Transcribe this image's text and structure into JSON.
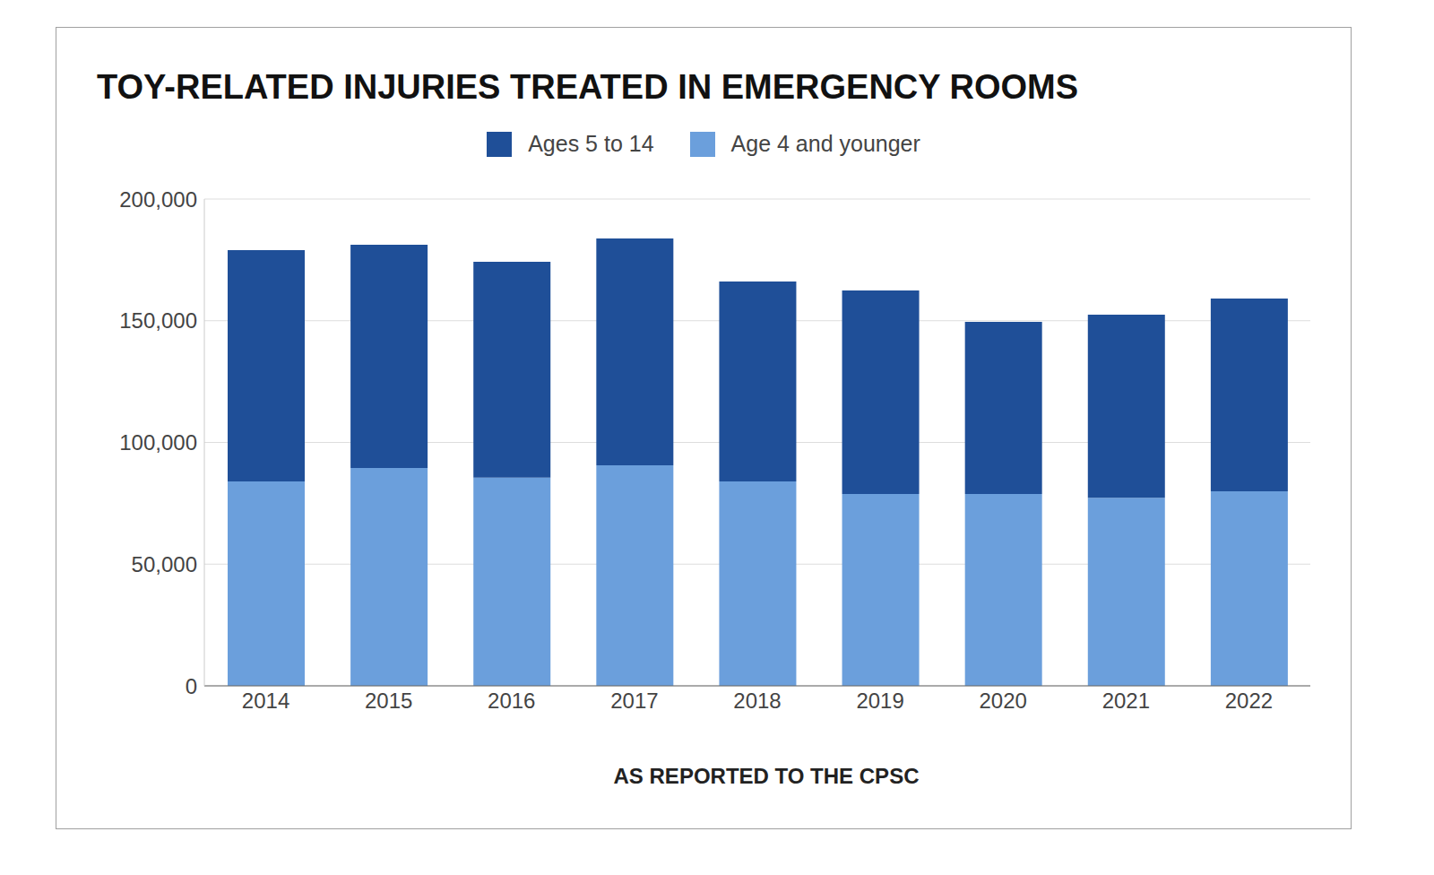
{
  "chart_data": {
    "type": "bar",
    "title": "TOY-RELATED INJURIES TREATED IN EMERGENCY ROOMS",
    "x_label": "AS REPORTED TO THE CPSC",
    "categories": [
      "2014",
      "2015",
      "2016",
      "2017",
      "2018",
      "2019",
      "2020",
      "2021",
      "2022"
    ],
    "series": [
      {
        "name": "Ages 5 to 14",
        "color": "#1f4f98",
        "values": [
          95000,
          91700,
          88700,
          93200,
          82100,
          83600,
          70700,
          75200,
          79200
        ]
      },
      {
        "name": "Age 4 and younger",
        "color": "#6b9fdc",
        "values": [
          84000,
          89500,
          85500,
          90600,
          84000,
          78800,
          78800,
          77300,
          79900
        ]
      }
    ],
    "stacked": true,
    "ylim": [
      0,
      200000
    ],
    "yticks": [
      0,
      {
        "value": 50000,
        "label": "50,000"
      },
      {
        "value": 100000,
        "label": "100,000"
      },
      {
        "value": 150000,
        "label": "150,000"
      },
      {
        "value": 200000,
        "label": "200,000"
      }
    ],
    "grid": true,
    "legend": "top"
  }
}
